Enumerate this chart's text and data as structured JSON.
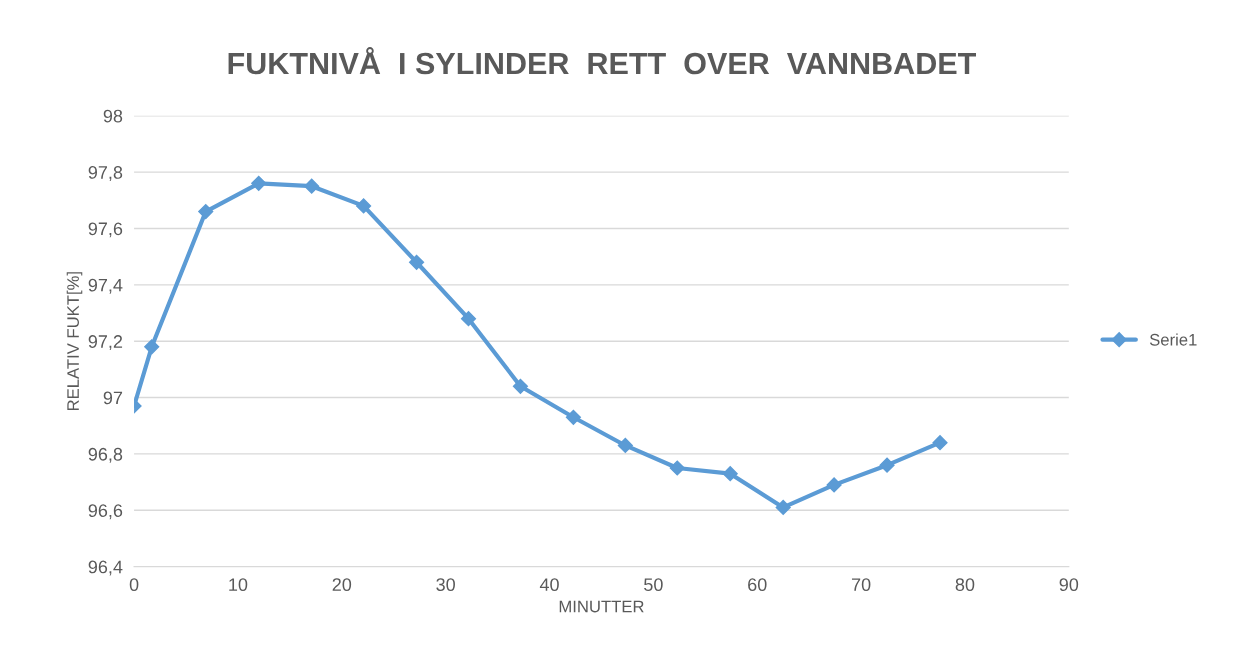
{
  "chart_data": {
    "type": "line",
    "title": "FUKTNIVÅ  I SYLINDER  RETT  OVER  VANNBADET",
    "xlabel": "MINUTTER",
    "ylabel": "RELATIV FUKT[%]",
    "series": [
      {
        "name": "Serie1",
        "color": "#5b9bd5",
        "x": [
          0,
          1.7,
          6.9,
          12,
          17.1,
          22.1,
          27.2,
          32.2,
          37.2,
          42.3,
          47.3,
          52.3,
          57.4,
          62.5,
          67.4,
          72.5,
          77.6
        ],
        "values": [
          96.97,
          97.18,
          97.66,
          97.76,
          97.75,
          97.68,
          97.48,
          97.28,
          97.04,
          96.93,
          96.83,
          96.75,
          96.73,
          96.61,
          96.69,
          96.76,
          96.84
        ]
      }
    ],
    "xlim": [
      0,
      90
    ],
    "xticks": [
      0,
      10,
      20,
      30,
      40,
      50,
      60,
      70,
      80,
      90
    ],
    "ylim": [
      96.4,
      98
    ],
    "yticks": [
      {
        "value": 96.4,
        "label": "96,4"
      },
      {
        "value": 96.6,
        "label": "96,6"
      },
      {
        "value": 96.8,
        "label": "96,8"
      },
      {
        "value": 97,
        "label": "97"
      },
      {
        "value": 97.2,
        "label": "97,2"
      },
      {
        "value": 97.4,
        "label": "97,4"
      },
      {
        "value": 97.6,
        "label": "97,6"
      },
      {
        "value": 97.8,
        "label": "97,8"
      },
      {
        "value": 98,
        "label": "98"
      }
    ],
    "grid": "y",
    "legend": "right",
    "marker": "diamond",
    "line_style": "solid"
  }
}
